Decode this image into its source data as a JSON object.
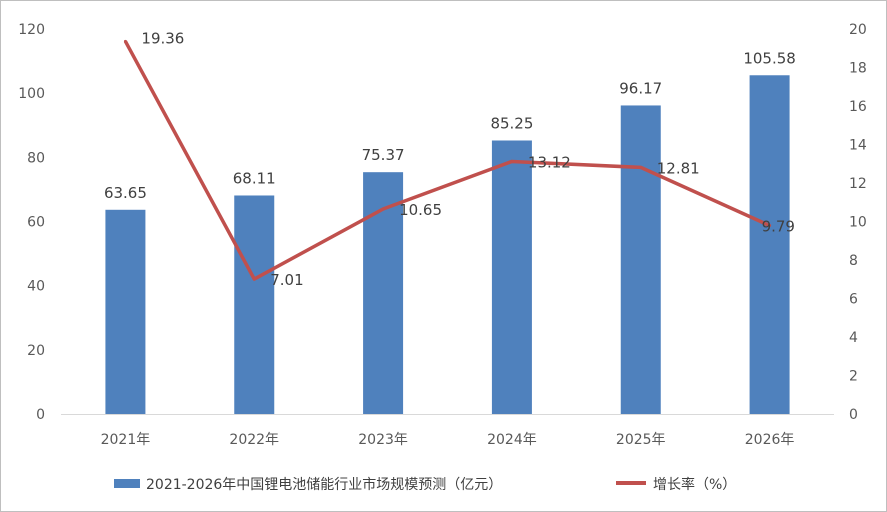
{
  "chart_data": {
    "type": "bar",
    "categories": [
      "2021年",
      "2022年",
      "2023年",
      "2024年",
      "2025年",
      "2026年"
    ],
    "series": [
      {
        "name": "2021-2026年中国锂电池储能行业市场规模预测（亿元）",
        "type": "bar",
        "axis": "left",
        "color": "#4f81bd",
        "values": [
          63.65,
          68.11,
          75.37,
          85.25,
          96.17,
          105.58
        ],
        "labels": [
          "63.65",
          "68.11",
          "75.37",
          "85.25",
          "96.17",
          "105.58"
        ]
      },
      {
        "name": "增长率（%）",
        "type": "line",
        "axis": "right",
        "color": "#c0504d",
        "values": [
          19.36,
          7.01,
          10.65,
          13.12,
          12.81,
          9.79
        ],
        "labels": [
          "19.36",
          "7.01",
          "10.65",
          "13.12",
          "12.81",
          "9.79"
        ]
      }
    ],
    "y_left": {
      "lim": [
        0,
        120
      ],
      "ticks": [
        "0",
        "20",
        "40",
        "60",
        "80",
        "100",
        "120"
      ]
    },
    "y_right": {
      "lim": [
        0,
        20
      ],
      "ticks": [
        "0",
        "2",
        "4",
        "6",
        "8",
        "10",
        "12",
        "14",
        "16",
        "18",
        "20"
      ]
    },
    "title": "",
    "xlabel": "",
    "ylabel": "",
    "grid": false,
    "legend_position": "bottom"
  }
}
